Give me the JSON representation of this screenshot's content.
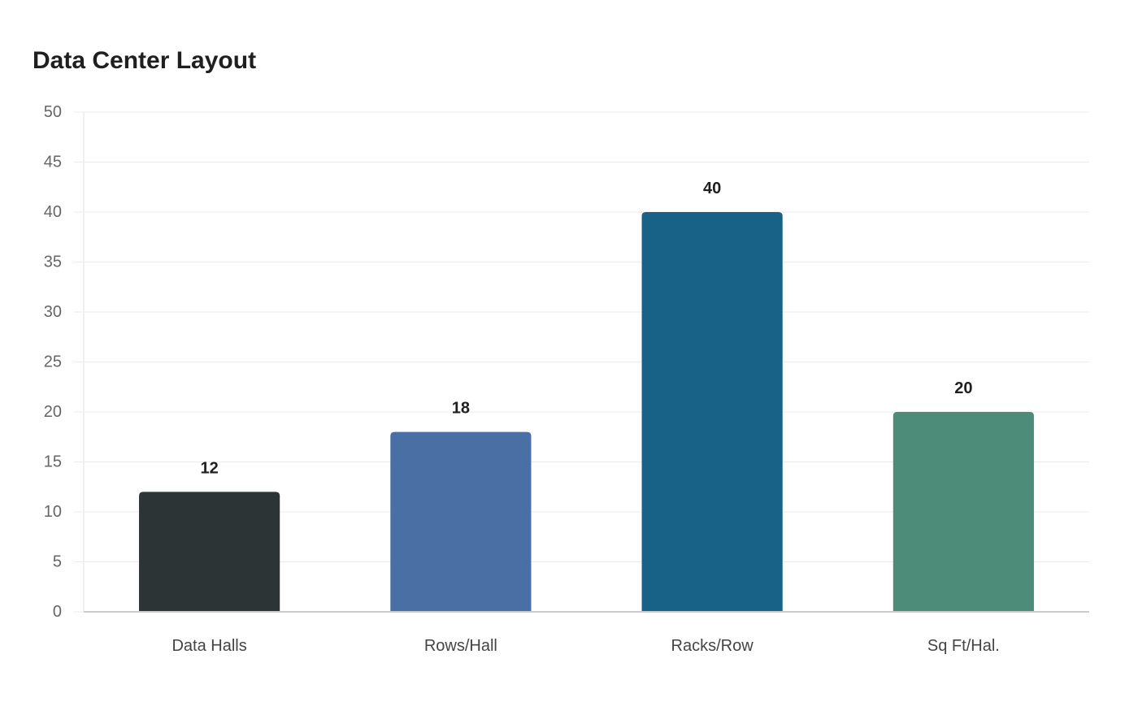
{
  "chart_data": {
    "type": "bar",
    "title": "Data Center Layout",
    "categories": [
      "Data Halls",
      "Rows/Hall",
      "Racks/Row",
      "Sq Ft/Hal."
    ],
    "values": [
      12,
      18,
      40,
      20
    ],
    "colors": [
      "#2d3436",
      "#4a6fa5",
      "#186288",
      "#4e8c7a"
    ],
    "ylim": [
      0,
      50
    ],
    "yticks": [
      0,
      5,
      10,
      15,
      20,
      25,
      30,
      35,
      40,
      45,
      50
    ],
    "xlabel": "",
    "ylabel": "",
    "grid": true,
    "legend": "none",
    "data_labels": true
  },
  "style": {
    "grid_color": "#ebebeb",
    "axis_color": "#cccccc"
  }
}
